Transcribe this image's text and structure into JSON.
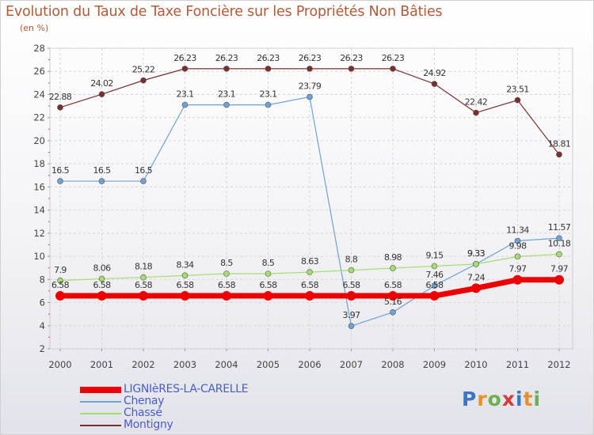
{
  "title": "Evolution du Taux de Taxe Foncière sur les Propriétés Non Bâties",
  "subtitle": "(en %)",
  "logo": {
    "text": "Proxiti",
    "letters": [
      {
        "ch": "P",
        "color": "#3a76c4"
      },
      {
        "ch": "r",
        "color": "#e8912a"
      },
      {
        "ch": "o",
        "color": "#6ab04c"
      },
      {
        "ch": "x",
        "color": "#d63b3b"
      },
      {
        "ch": "i",
        "color": "#3a76c4"
      },
      {
        "ch": "t",
        "color": "#e8912a"
      },
      {
        "ch": "i",
        "color": "#6ab04c"
      }
    ]
  },
  "chart_data": {
    "type": "line",
    "title": "Evolution du Taux de Taxe Foncière sur les Propriétés Non Bâties",
    "ylabel": "(en %)",
    "xlabel": "",
    "categories": [
      "2000",
      "2001",
      "2002",
      "2003",
      "2004",
      "2005",
      "2006",
      "2007",
      "2008",
      "2009",
      "2010",
      "2011",
      "2012"
    ],
    "ylim": [
      2,
      28
    ],
    "yticks": [
      "2",
      "4",
      "6",
      "8",
      "10",
      "12",
      "14",
      "16",
      "18",
      "20",
      "22",
      "24",
      "26",
      "28"
    ],
    "grid": true,
    "legend_position": "bottom-left",
    "series": [
      {
        "name": "LIGNIèRES-LA-CARELLE",
        "color": "#ee0000",
        "width": 7,
        "values": [
          6.58,
          6.58,
          6.58,
          6.58,
          6.58,
          6.58,
          6.58,
          6.58,
          6.58,
          6.58,
          7.24,
          7.97,
          7.97
        ],
        "labels": [
          "6.58",
          "6.58",
          "6.58",
          "6.58",
          "6.58",
          "6.58",
          "6.58",
          "6.58",
          "6.58",
          "6.58",
          "7.24",
          "7.97",
          "7.97"
        ]
      },
      {
        "name": "Chenay",
        "color": "#6fa2d2",
        "width": 1.2,
        "values": [
          16.5,
          16.5,
          16.5,
          23.1,
          23.1,
          23.1,
          23.79,
          3.97,
          5.16,
          7.46,
          9.33,
          11.34,
          11.57
        ],
        "labels": [
          "16.5",
          "16.5",
          "16.5",
          "23.1",
          "23.1",
          "23.1",
          "23.79",
          "3.97",
          "5.16",
          "7.46",
          "9.33",
          "11.34",
          "11.57"
        ]
      },
      {
        "name": "Chassé",
        "color": "#a5de6f",
        "width": 1.2,
        "values": [
          7.9,
          8.06,
          8.18,
          8.34,
          8.5,
          8.5,
          8.63,
          8.8,
          8.98,
          9.15,
          9.33,
          9.98,
          10.18
        ],
        "labels": [
          "7.9",
          "8.06",
          "8.18",
          "8.34",
          "8.5",
          "8.5",
          "8.63",
          "8.8",
          "8.98",
          "9.15",
          "9.33",
          "9.98",
          "10.18"
        ]
      },
      {
        "name": "Montigny",
        "color": "#7a2f2f",
        "width": 1.2,
        "values": [
          22.88,
          24.02,
          25.22,
          26.23,
          26.23,
          26.23,
          26.23,
          26.23,
          26.23,
          24.92,
          22.42,
          23.51,
          18.81
        ],
        "labels": [
          "22.88",
          "24.02",
          "25.22",
          "26.23",
          "26.23",
          "26.23",
          "26.23",
          "26.23",
          "26.23",
          "24.92",
          "22.42",
          "23.51",
          "18.81"
        ]
      }
    ]
  }
}
